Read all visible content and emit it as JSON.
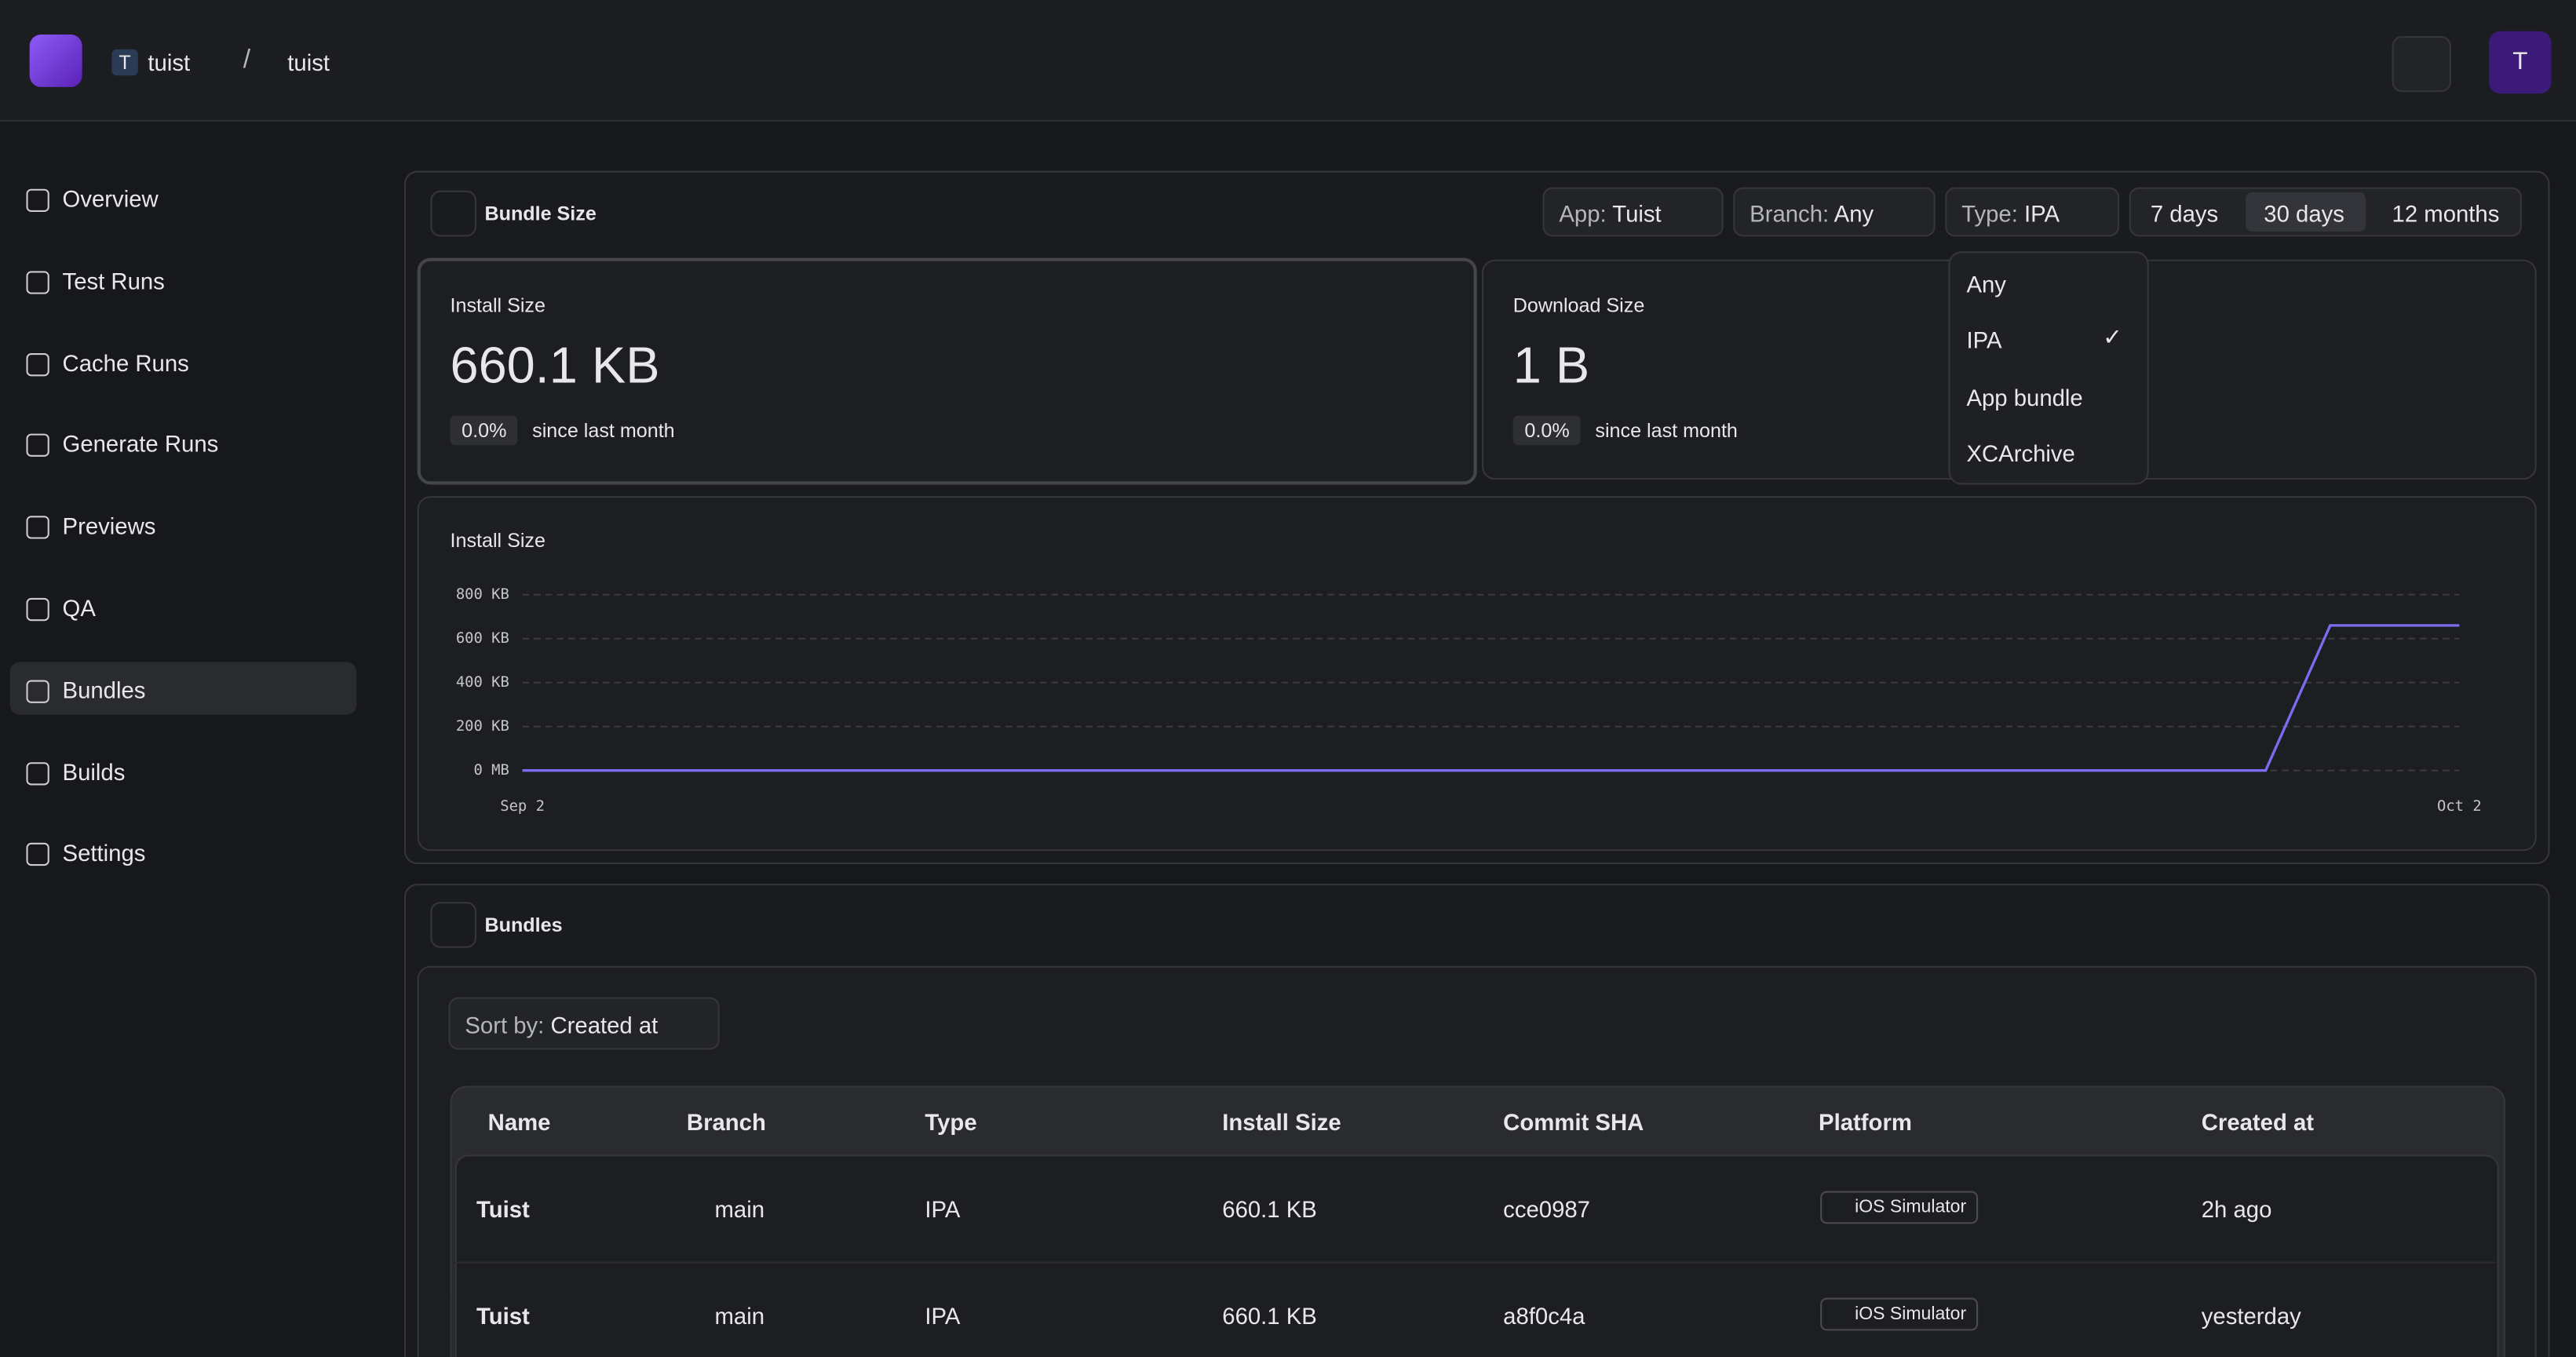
{
  "header": {
    "org_initial": "T",
    "org": "tuist",
    "project": "tuist",
    "avatar": "T"
  },
  "sidebar": {
    "items": [
      "Overview",
      "Test Runs",
      "Cache Runs",
      "Generate Runs",
      "Previews",
      "QA",
      "Bundles",
      "Builds",
      "Settings"
    ]
  },
  "bundle_size": {
    "title": "Bundle Size",
    "filters": [
      {
        "label": "App:",
        "value": "Tuist"
      },
      {
        "label": "Branch:",
        "value": "Any"
      },
      {
        "label": "Type:",
        "value": "IPA"
      }
    ],
    "ranges": [
      "7 days",
      "30 days",
      "12 months"
    ],
    "dropdown": [
      "Any",
      "IPA",
      "App bundle",
      "XCArchive"
    ],
    "install": {
      "label": "Install Size",
      "value": "660.1 KB",
      "change": "0.0%",
      "note": "since last month"
    },
    "download": {
      "label": "Download Size",
      "value": "1 B",
      "change": "0.0%",
      "note": "since last month"
    }
  },
  "chart_data": {
    "type": "line",
    "title": "Install Size",
    "categories": [
      "Sep 2",
      null,
      null,
      null,
      null,
      null,
      null,
      null,
      null,
      null,
      null,
      null,
      null,
      null,
      null,
      null,
      null,
      null,
      null,
      null,
      null,
      null,
      null,
      null,
      null,
      null,
      null,
      null,
      null,
      null,
      "Oct 2"
    ],
    "series": [
      {
        "name": "Install Size",
        "color": "#7b6cf0",
        "values": [
          0,
          0,
          0,
          0,
          0,
          0,
          0,
          0,
          0,
          0,
          0,
          0,
          0,
          0,
          0,
          0,
          0,
          0,
          0,
          0,
          0,
          0,
          0,
          0,
          0,
          0,
          0,
          0,
          660.1,
          660.1,
          660.1
        ]
      }
    ],
    "ylim": [
      0,
      800
    ],
    "yticks": [
      {
        "value": 0,
        "label": "0 MB"
      },
      {
        "value": 200,
        "label": "200 KB"
      },
      {
        "value": 400,
        "label": "400 KB"
      },
      {
        "value": 600,
        "label": "600 KB"
      },
      {
        "value": 800,
        "label": "800 KB"
      }
    ],
    "grid": true
  },
  "bundles": {
    "title": "Bundles",
    "sort_label": "Sort by:",
    "sort_value": "Created at",
    "table": {
      "columns": [
        "Name",
        "Branch",
        "Type",
        "Install Size",
        "Commit SHA",
        "Platform",
        "Created at"
      ],
      "rows": [
        [
          "Tuist",
          "main",
          "IPA",
          "660.1 KB",
          "cce0987",
          "iOS Simulator",
          "2h ago"
        ],
        [
          "Tuist",
          "main",
          "IPA",
          "660.1 KB",
          "a8f0c4a",
          "iOS Simulator",
          "yesterday"
        ]
      ]
    }
  }
}
